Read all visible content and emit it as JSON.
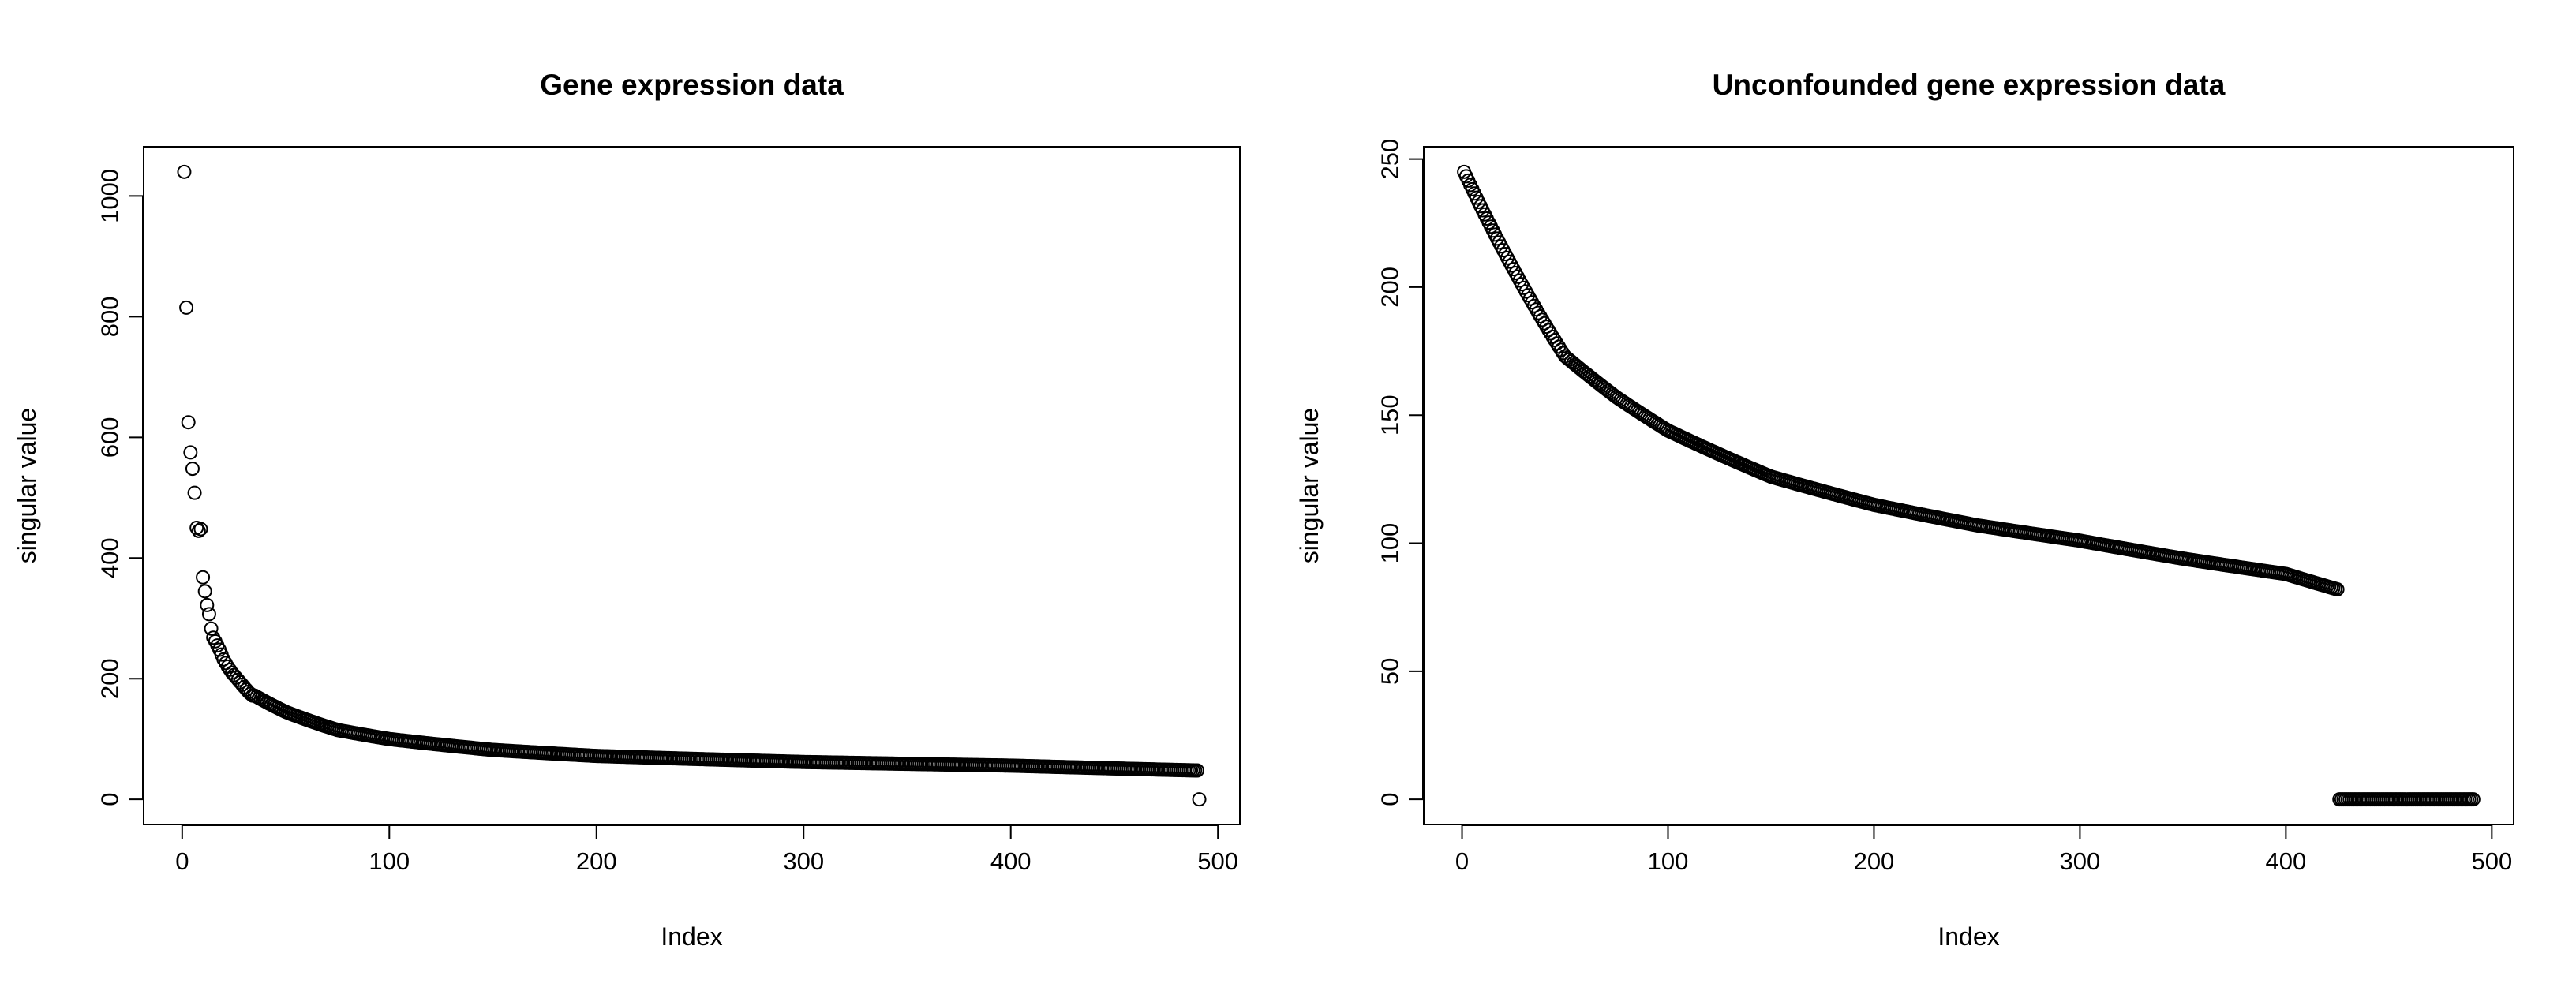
{
  "chart_data": [
    {
      "type": "scatter",
      "title": "Gene expression data",
      "xlabel": "Index",
      "ylabel": "singular value",
      "xlim": [
        1,
        491
      ],
      "ylim": [
        0,
        1040
      ],
      "x_ticks": [
        0,
        100,
        200,
        300,
        400,
        500
      ],
      "y_ticks": [
        0,
        200,
        400,
        600,
        800,
        1000
      ],
      "grid": false,
      "series": [
        {
          "marker": "open-circle",
          "head_values": [
            1040,
            815,
            625,
            575,
            548,
            508,
            450,
            445,
            448,
            368,
            345,
            322,
            307,
            283,
            268,
            262,
            255,
            248,
            240,
            232,
            226,
            220,
            215,
            210,
            206,
            202,
            198,
            194,
            190,
            186,
            182,
            178,
            175,
            172
          ],
          "curve_anchors": [
            [
              35,
              172
            ],
            [
              50,
              145
            ],
            [
              75,
              115
            ],
            [
              100,
              100
            ],
            [
              150,
              82
            ],
            [
              200,
              72
            ],
            [
              300,
              62
            ],
            [
              400,
              56
            ],
            [
              489,
              48
            ]
          ],
          "n_points": 491,
          "last_value": 0
        }
      ]
    },
    {
      "type": "scatter",
      "title": "Unconfounded gene expression data",
      "xlabel": "Index",
      "ylabel": "singular value",
      "xlim": [
        1,
        491
      ],
      "ylim": [
        0,
        245
      ],
      "x_ticks": [
        0,
        100,
        200,
        300,
        400,
        500
      ],
      "y_ticks": [
        0,
        50,
        100,
        150,
        200,
        250
      ],
      "grid": false,
      "series": [
        {
          "marker": "open-circle",
          "curve_anchors": [
            [
              1,
              245
            ],
            [
              25,
              207
            ],
            [
              50,
              173
            ],
            [
              75,
              157
            ],
            [
              100,
              144
            ],
            [
              150,
              126
            ],
            [
              200,
              115
            ],
            [
              250,
              107
            ],
            [
              300,
              101
            ],
            [
              350,
              94
            ],
            [
              400,
              88
            ],
            [
              425,
              82
            ]
          ],
          "n_points": 491,
          "zero_from_index": 426,
          "zero_value": 0
        }
      ]
    }
  ]
}
